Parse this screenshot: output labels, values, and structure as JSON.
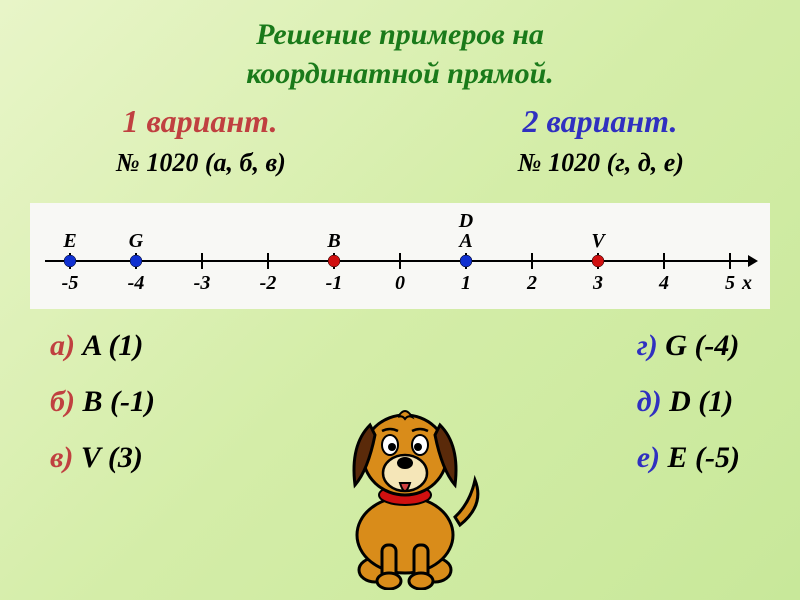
{
  "title_line1": "Решение  примеров  на",
  "title_line2": "координатной  прямой.",
  "variant1_label": "1 вариант.",
  "variant2_label": "2 вариант.",
  "task1": "№ 1020 (а, б, в)",
  "task2": "№ 1020 (г, д, е)",
  "numberline": {
    "x_min": -5,
    "x_max": 5,
    "tick_labels": [
      "-5",
      "-4",
      "-3",
      "-2",
      "-1",
      "0",
      "1",
      "2",
      "3",
      "4",
      "5"
    ],
    "axis_label": "x",
    "axis_color": "#000000",
    "tick_color": "#000000",
    "label_fontsize": 20,
    "point_label_fontsize": 20,
    "points": [
      {
        "name": "E",
        "value": -5,
        "color": "#1030d0"
      },
      {
        "name": "G",
        "value": -4,
        "color": "#1030d0"
      },
      {
        "name": "B",
        "value": -1,
        "color": "#d01010"
      },
      {
        "name": "A",
        "value": 1,
        "color": "#1030d0"
      },
      {
        "name": "D",
        "value": 1,
        "color": "#1030d0",
        "label_above": true
      },
      {
        "name": "V",
        "value": 3,
        "color": "#d01010"
      }
    ]
  },
  "answers_left": [
    {
      "letter": "а)",
      "letter_color": "red",
      "text": " A (1)"
    },
    {
      "letter": "б)",
      "letter_color": "red",
      "text": " B (-1)"
    },
    {
      "letter": "в)",
      "letter_color": "red",
      "text": " V (3)"
    }
  ],
  "answers_right": [
    {
      "letter": "г)",
      "letter_color": "blue",
      "text": " G (-4)"
    },
    {
      "letter": "д)",
      "letter_color": "blue",
      "text": " D (1)"
    },
    {
      "letter": "е)",
      "letter_color": "blue",
      "text": " E (-5)"
    }
  ],
  "dog_colors": {
    "body": "#d98c1a",
    "outline": "#000000",
    "ear": "#5a2a0a",
    "tongue": "#d04040",
    "collar": "#d01010"
  }
}
